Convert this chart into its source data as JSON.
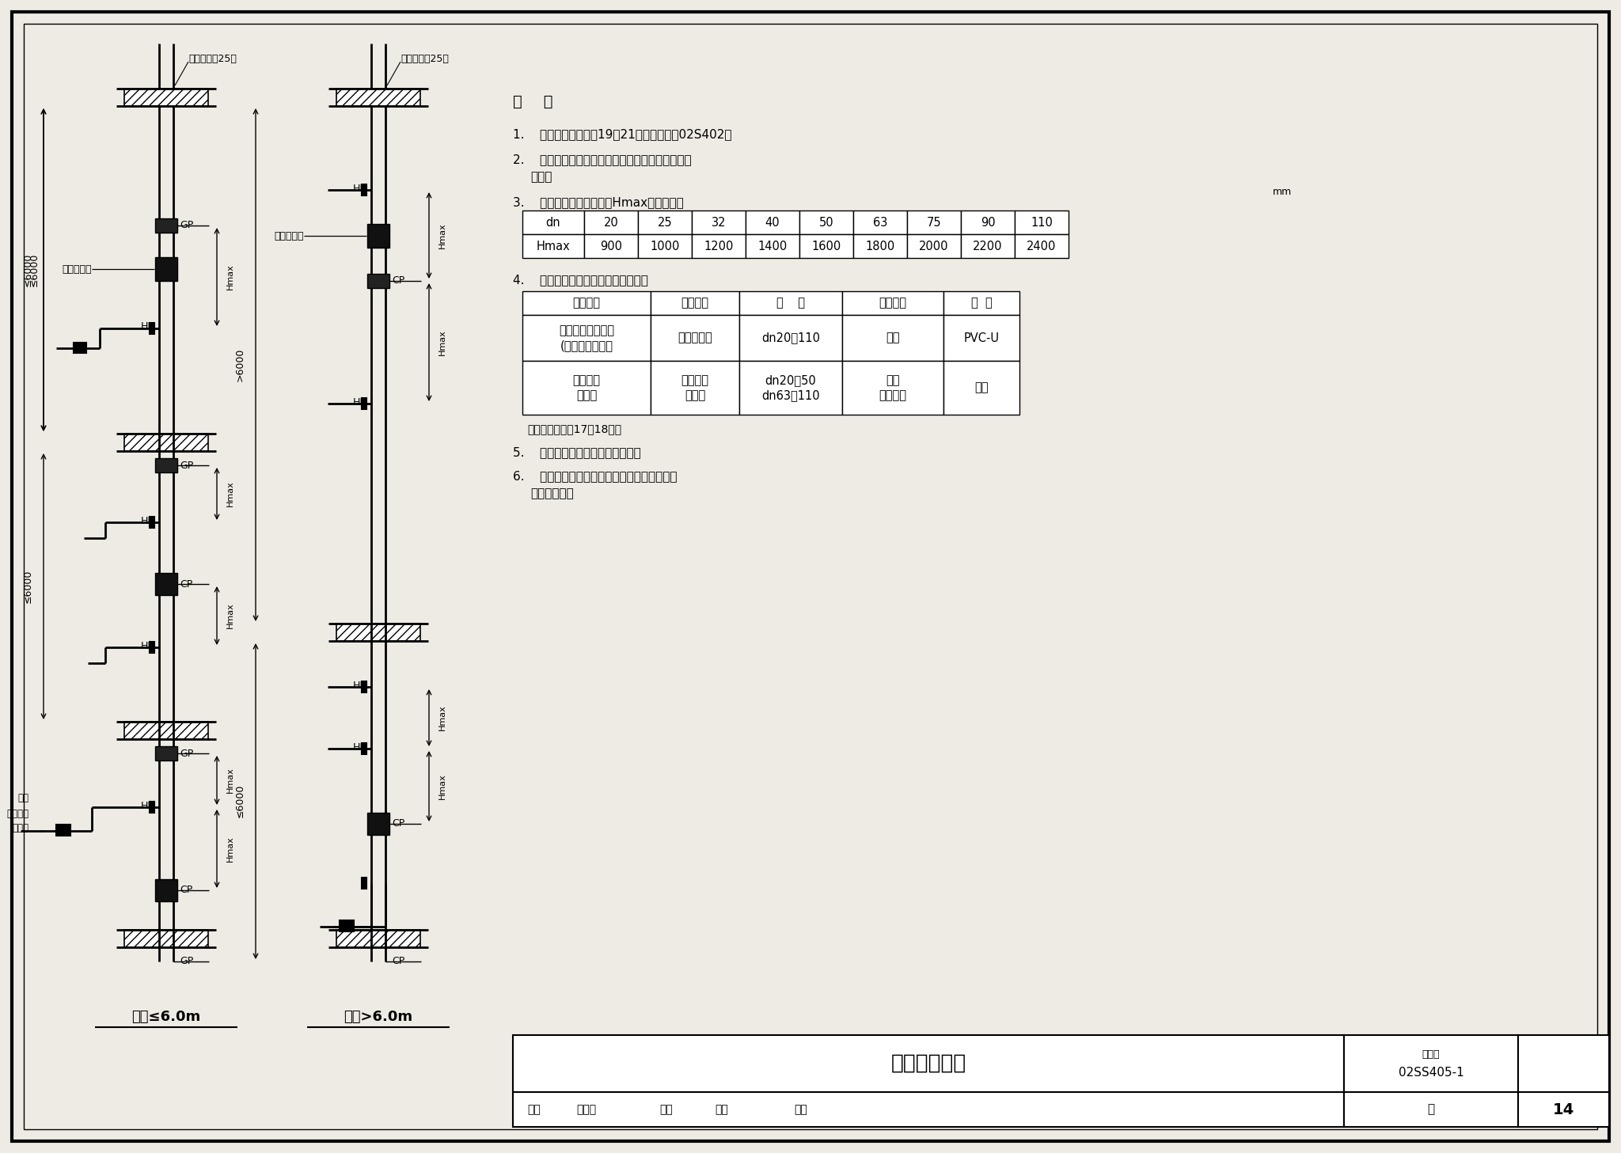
{
  "title": "粘接立管安装",
  "figure_number": "02SS405-1",
  "page": "14",
  "bg_color": "#eeebe4",
  "note_title": "说    明",
  "note1": "1.    给水立管支承详见19～21页或国标图集02S402。",
  "note2a": "2.    补偿方式可采用双向伸缩节也可采用多球橡胶伸",
  "note2b": "        缩节。",
  "note3": "3.    给水立管最大支承间距Hmax详见下表：",
  "note4": "4.    补偿器规格与连接方式详见下表：",
  "note5": "5.    双向伸缩节中间应设固定支承。",
  "note6a": "6.    支管朝上安装时，橡胶隔振过滤器应安装于",
  "note6b": "        水平管段上。",
  "note_table2": "注：伸缩节详见17、18页。",
  "mm_label": "mm",
  "table1_headers": [
    "dn",
    "20",
    "25",
    "32",
    "40",
    "50",
    "63",
    "75",
    "90",
    "110"
  ],
  "table1_data": [
    "Hmax",
    "900",
    "1000",
    "1200",
    "1400",
    "1600",
    "1800",
    "2000",
    "2200",
    "2400"
  ],
  "table2_col_headers": [
    "公司名称",
    "产品名称",
    "规    格",
    "连接方式",
    "材  料"
  ],
  "table2_row1": [
    "南塑建材塑胶制品\n(深圳）有限公司",
    "塑料伸缩节",
    "dn20～110",
    "插接",
    "PVC-U"
  ],
  "table2_row2": [
    "上海半江\n橡胶厂",
    "多球橡胶\n伸缩节",
    "dn20～50\ndn63～110",
    "丝接\n法兰连接",
    "橡胶"
  ],
  "left_label": "层高≤6.0m",
  "right_label": "层高>6.0m",
  "left_floor_note": "穿楼面详见25页",
  "right_floor_note": "穿楼面详见25页",
  "footer_shenhe": "审核",
  "footer_jiaodui": "校对",
  "footer_sheji": "设计",
  "footer_ye": "页",
  "footer_tushu": "图集号"
}
